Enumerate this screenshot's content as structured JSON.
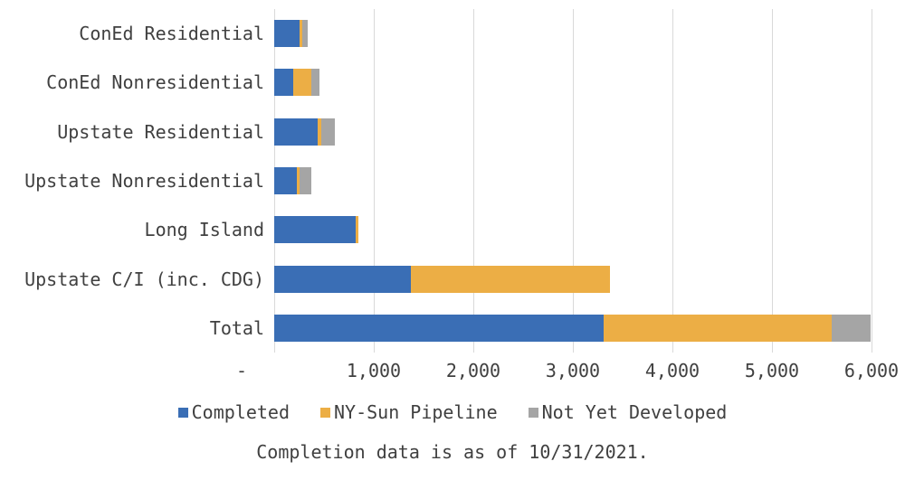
{
  "chart_data": {
    "type": "bar",
    "orientation": "horizontal",
    "stacked": true,
    "title": "",
    "xlabel": "",
    "ylabel": "",
    "categories": [
      "ConEd Residential",
      "ConEd Nonresidential",
      "Upstate Residential",
      "Upstate Nonresidential",
      "Long Island",
      "Upstate C/I (inc. CDG)",
      "Total"
    ],
    "series": [
      {
        "name": "Completed",
        "color": "#3a6eb5",
        "values": [
          250,
          195,
          440,
          225,
          820,
          1375,
          3305
        ]
      },
      {
        "name": "NY-Sun Pipeline",
        "color": "#ecae45",
        "values": [
          30,
          180,
          30,
          30,
          25,
          2000,
          2295
        ]
      },
      {
        "name": "Not Yet Developed",
        "color": "#a5a5a5",
        "values": [
          55,
          80,
          140,
          120,
          0,
          0,
          395
        ]
      }
    ],
    "x_axis": {
      "min": 0,
      "max": 6000,
      "tick_interval": 1000,
      "tick_labels": [
        "-",
        "1,000",
        "2,000",
        "3,000",
        "4,000",
        "5,000",
        "6,000"
      ]
    },
    "grid": true,
    "gridline_color": "#d9d9d9",
    "text_color": "#404040",
    "legend_position": "bottom",
    "caption": "Completion data is as of 10/31/2021."
  }
}
